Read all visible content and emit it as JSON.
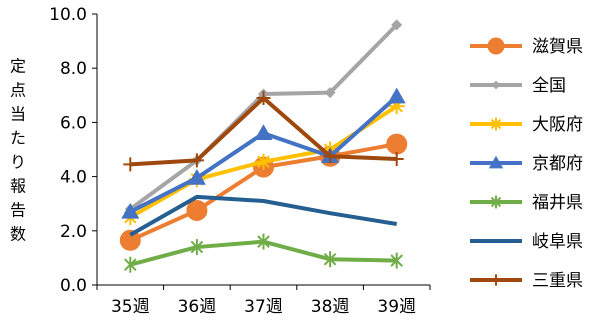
{
  "chart_data": {
    "type": "line",
    "title": "",
    "xlabel": "",
    "ylabel": "定点当たり報告数",
    "categories": [
      "35週",
      "36週",
      "37週",
      "38週",
      "39週"
    ],
    "ylim": [
      0.0,
      10.0
    ],
    "yticks": [
      "0.0",
      "2.0",
      "4.0",
      "6.0",
      "8.0",
      "10.0"
    ],
    "grid": false,
    "legend_position": "right",
    "series": [
      {
        "name": "滋賀県",
        "color": "#ED7D31",
        "marker": "circle",
        "values": [
          1.65,
          2.75,
          4.35,
          4.75,
          5.2
        ]
      },
      {
        "name": "全国",
        "color": "#A5A5A5",
        "marker": "diamond",
        "values": [
          2.8,
          4.6,
          7.05,
          7.1,
          9.6
        ]
      },
      {
        "name": "大阪府",
        "color": "#FFC000",
        "marker": "star",
        "values": [
          2.5,
          3.9,
          4.55,
          5.0,
          6.6
        ]
      },
      {
        "name": "京都府",
        "color": "#4472C4",
        "marker": "triangle",
        "values": [
          2.7,
          3.95,
          5.6,
          4.75,
          6.95
        ]
      },
      {
        "name": "福井県",
        "color": "#70AD47",
        "marker": "x-star",
        "values": [
          0.75,
          1.4,
          1.6,
          0.95,
          0.9
        ]
      },
      {
        "name": "岐阜県",
        "color": "#255E91",
        "marker": "none",
        "values": [
          1.85,
          3.25,
          3.1,
          2.65,
          2.25
        ]
      },
      {
        "name": "三重県",
        "color": "#9E480E",
        "marker": "plus",
        "values": [
          4.45,
          4.6,
          6.9,
          4.75,
          4.65
        ]
      }
    ]
  }
}
